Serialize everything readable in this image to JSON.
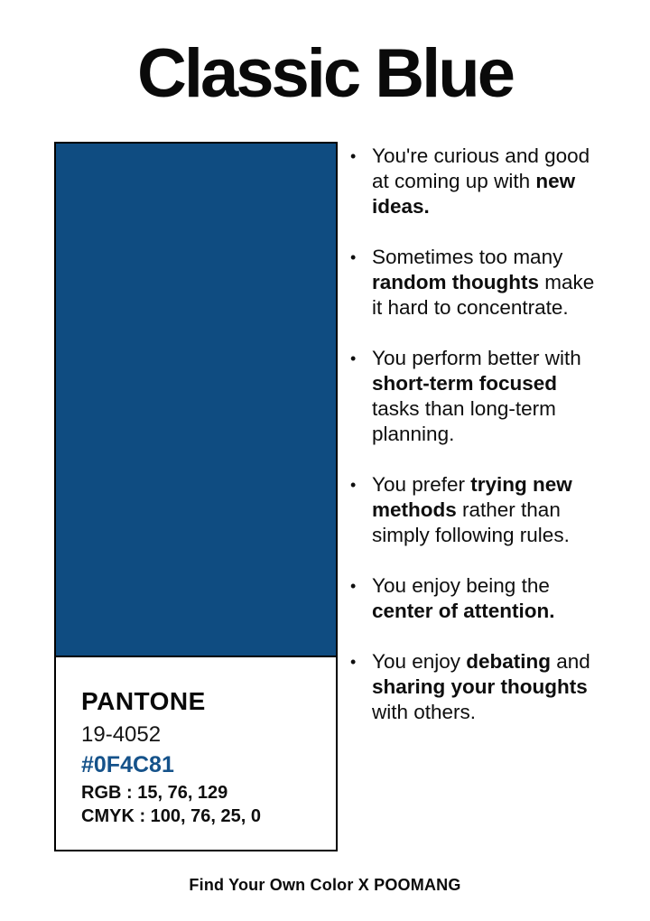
{
  "title": "Classic Blue",
  "card": {
    "swatch_color": "#0F4C81",
    "brand": "PANTONE",
    "code": "19-4052",
    "hex": "#0F4C81",
    "hex_text_color": "#15528A",
    "rgb": "RGB : 15, 76, 129",
    "cmyk": "CMYK : 100, 76, 25, 0"
  },
  "traits": {
    "bullet_char": "•",
    "items": [
      {
        "segments": [
          {
            "text": "You're curious and good at coming up with ",
            "bold": false
          },
          {
            "text": "new ideas.",
            "bold": true
          }
        ]
      },
      {
        "segments": [
          {
            "text": "Sometimes too many ",
            "bold": false
          },
          {
            "text": "random thoughts",
            "bold": true
          },
          {
            "text": " make it hard to concentrate.",
            "bold": false
          }
        ]
      },
      {
        "segments": [
          {
            "text": "You perform better with ",
            "bold": false
          },
          {
            "text": "short-term focused",
            "bold": true
          },
          {
            "text": " tasks than long-term planning.",
            "bold": false
          }
        ]
      },
      {
        "segments": [
          {
            "text": "You prefer ",
            "bold": false
          },
          {
            "text": "trying new methods",
            "bold": true
          },
          {
            "text": " rather than simply following rules.",
            "bold": false
          }
        ]
      },
      {
        "segments": [
          {
            "text": "You enjoy being the ",
            "bold": false
          },
          {
            "text": "center of attention.",
            "bold": true
          }
        ]
      },
      {
        "segments": [
          {
            "text": "You enjoy ",
            "bold": false
          },
          {
            "text": "debating",
            "bold": true
          },
          {
            "text": " and ",
            "bold": false
          },
          {
            "text": "sharing your thoughts",
            "bold": true
          },
          {
            "text": " with others.",
            "bold": false
          }
        ]
      }
    ]
  },
  "footer": "Find Your Own Color X POOMANG"
}
